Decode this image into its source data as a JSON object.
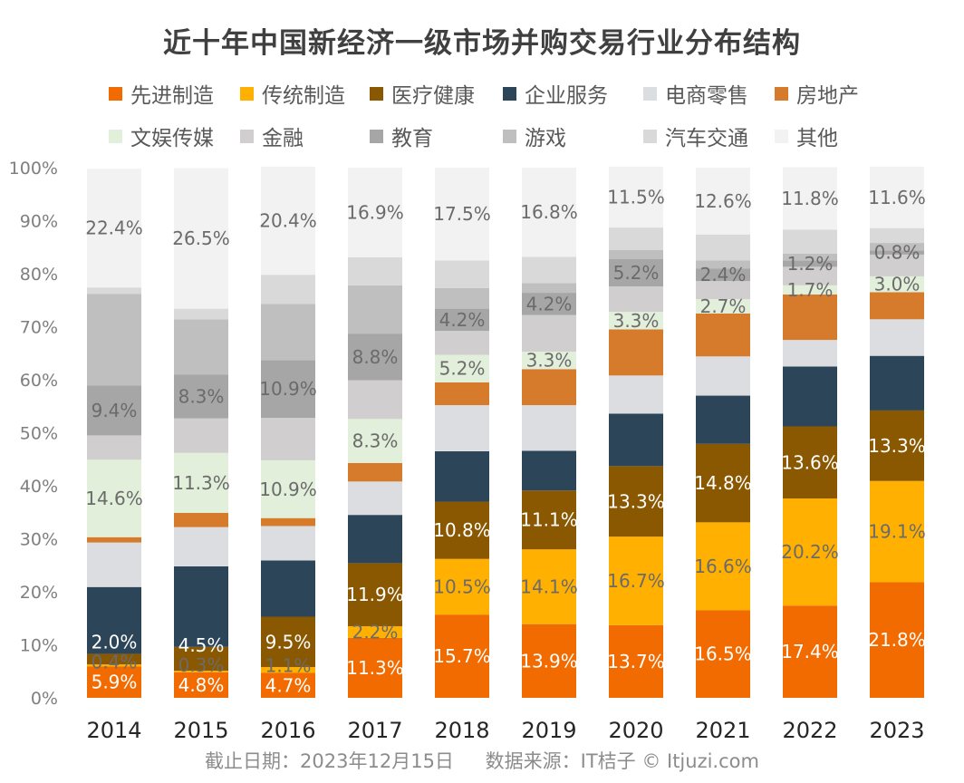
{
  "chart_data": {
    "type": "bar",
    "stacked": true,
    "title": "近十年中国新经济一级市场并购交易行业分布结构",
    "categories": [
      "2014",
      "2015",
      "2016",
      "2017",
      "2018",
      "2019",
      "2020",
      "2021",
      "2022",
      "2023"
    ],
    "ylim": [
      0,
      100
    ],
    "yticks": [
      "0%",
      "10%",
      "20%",
      "30%",
      "40%",
      "50%",
      "60%",
      "70%",
      "80%",
      "90%",
      "100%"
    ],
    "grid": false,
    "legend_position": "top",
    "series": [
      {
        "name": "先进制造",
        "color": "#F26B00",
        "labeled": true,
        "label_color": "#FFFFFF",
        "values": [
          5.9,
          4.8,
          4.7,
          11.3,
          15.7,
          13.9,
          13.7,
          16.5,
          17.4,
          21.8
        ]
      },
      {
        "name": "传统制造",
        "color": "#FFB000",
        "labeled": true,
        "label_color": "#6b6b6b",
        "values": [
          0.4,
          0.3,
          1.1,
          2.2,
          10.5,
          14.1,
          16.7,
          16.6,
          20.2,
          19.1
        ]
      },
      {
        "name": "医疗健康",
        "color": "#8A5800",
        "labeled": true,
        "label_color": "#FFFFFF",
        "values": [
          2.0,
          4.5,
          9.5,
          11.9,
          10.8,
          11.1,
          13.3,
          14.8,
          13.6,
          13.3
        ]
      },
      {
        "name": "企业服务",
        "color": "#2C4559",
        "labeled": false,
        "values": [
          12.6,
          15.2,
          10.6,
          9.1,
          9.5,
          7.5,
          9.9,
          9.1,
          11.3,
          10.3
        ]
      },
      {
        "name": "电商零售",
        "color": "#DCDDE1",
        "labeled": false,
        "values": [
          8.4,
          7.4,
          6.5,
          6.3,
          8.7,
          8.6,
          7.2,
          7.4,
          5.0,
          6.9
        ]
      },
      {
        "name": "房地产",
        "color": "#D67A2C",
        "labeled": false,
        "values": [
          1.0,
          2.7,
          1.5,
          3.5,
          4.3,
          6.8,
          8.7,
          8.1,
          8.6,
          5.1
        ]
      },
      {
        "name": "文娱传媒",
        "color": "#E2EFDA",
        "labeled": true,
        "label_color": "#6b6b6b",
        "values": [
          14.6,
          11.3,
          10.9,
          8.3,
          5.2,
          3.3,
          3.3,
          2.7,
          1.7,
          3.0
        ]
      },
      {
        "name": "金融",
        "color": "#D0CECE",
        "labeled": false,
        "values": [
          4.6,
          6.5,
          8.0,
          7.3,
          4.5,
          6.9,
          4.8,
          3.4,
          3.5,
          4.1
        ]
      },
      {
        "name": "教育",
        "color": "#A6A6A6",
        "labeled": true,
        "label_color": "#6b6b6b",
        "values": [
          9.4,
          8.3,
          10.9,
          8.8,
          4.2,
          4.2,
          5.2,
          2.4,
          1.2,
          0.8
        ]
      },
      {
        "name": "游戏",
        "color": "#BFBFBF",
        "labeled": false,
        "values": [
          17.3,
          10.4,
          10.6,
          9.1,
          3.9,
          1.8,
          1.7,
          1.5,
          1.3,
          1.4
        ]
      },
      {
        "name": "汽车交通",
        "color": "#D9D9D9",
        "labeled": false,
        "values": [
          1.2,
          2.0,
          5.5,
          5.3,
          5.2,
          5.0,
          4.2,
          4.9,
          4.5,
          2.8
        ]
      },
      {
        "name": "其他",
        "color": "#F2F2F2",
        "labeled": true,
        "label_color": "#6b6b6b",
        "values": [
          22.4,
          26.5,
          20.4,
          16.9,
          17.5,
          16.8,
          11.5,
          12.6,
          11.8,
          11.6
        ]
      }
    ]
  },
  "footer": {
    "date": "截止日期：2023年12月15日",
    "source": "数据来源：IT桔子 © Itjuzi.com"
  }
}
